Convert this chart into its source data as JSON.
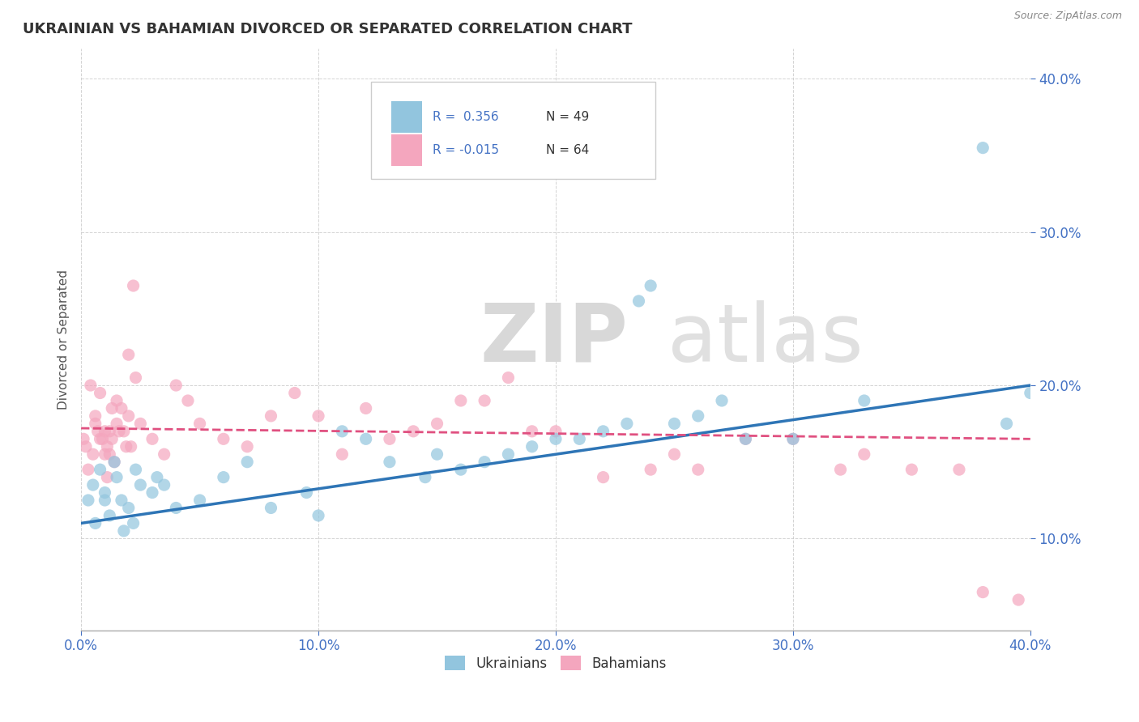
{
  "title": "UKRAINIAN VS BAHAMIAN DIVORCED OR SEPARATED CORRELATION CHART",
  "source": "Source: ZipAtlas.com",
  "ylabel": "Divorced or Separated",
  "legend_blue_r": "R =  0.356",
  "legend_blue_n": "N = 49",
  "legend_pink_r": "R = -0.015",
  "legend_pink_n": "N = 64",
  "legend_blue_label": "Ukrainians",
  "legend_pink_label": "Bahamians",
  "blue_color": "#92c5de",
  "pink_color": "#f4a6be",
  "blue_line_color": "#2e75b6",
  "pink_line_color": "#e05080",
  "watermark_zip": "ZIP",
  "watermark_atlas": "atlas",
  "blue_scatter_x": [
    0.3,
    0.5,
    0.6,
    0.8,
    1.0,
    1.0,
    1.2,
    1.4,
    1.5,
    1.7,
    1.8,
    2.0,
    2.2,
    2.3,
    2.5,
    3.0,
    3.2,
    3.5,
    4.0,
    5.0,
    6.0,
    7.0,
    8.0,
    9.5,
    10.0,
    11.0,
    12.0,
    13.0,
    14.5,
    15.0,
    16.0,
    17.0,
    18.0,
    19.0,
    20.0,
    21.0,
    22.0,
    23.0,
    23.5,
    24.0,
    25.0,
    26.0,
    27.0,
    28.0,
    30.0,
    33.0,
    38.0,
    39.0,
    40.0
  ],
  "blue_scatter_y": [
    12.5,
    13.5,
    11.0,
    14.5,
    12.5,
    13.0,
    11.5,
    15.0,
    14.0,
    12.5,
    10.5,
    12.0,
    11.0,
    14.5,
    13.5,
    13.0,
    14.0,
    13.5,
    12.0,
    12.5,
    14.0,
    15.0,
    12.0,
    13.0,
    11.5,
    17.0,
    16.5,
    15.0,
    14.0,
    15.5,
    14.5,
    15.0,
    15.5,
    16.0,
    16.5,
    16.5,
    17.0,
    17.5,
    25.5,
    26.5,
    17.5,
    18.0,
    19.0,
    16.5,
    16.5,
    19.0,
    35.5,
    17.5,
    19.5
  ],
  "pink_scatter_x": [
    0.1,
    0.2,
    0.3,
    0.4,
    0.5,
    0.6,
    0.6,
    0.7,
    0.8,
    0.8,
    0.9,
    1.0,
    1.0,
    1.1,
    1.1,
    1.2,
    1.2,
    1.3,
    1.3,
    1.4,
    1.5,
    1.5,
    1.6,
    1.7,
    1.8,
    1.9,
    2.0,
    2.0,
    2.1,
    2.2,
    2.3,
    2.5,
    3.0,
    3.5,
    4.0,
    4.5,
    5.0,
    6.0,
    7.0,
    8.0,
    9.0,
    10.0,
    11.0,
    12.0,
    13.0,
    14.0,
    15.0,
    16.0,
    17.0,
    18.0,
    19.0,
    20.0,
    22.0,
    24.0,
    25.0,
    26.0,
    28.0,
    30.0,
    32.0,
    33.0,
    35.0,
    37.0,
    38.0,
    39.5
  ],
  "pink_scatter_y": [
    16.5,
    16.0,
    14.5,
    20.0,
    15.5,
    17.5,
    18.0,
    17.0,
    16.5,
    19.5,
    16.5,
    15.5,
    17.0,
    14.0,
    16.0,
    15.5,
    17.0,
    16.5,
    18.5,
    15.0,
    19.0,
    17.5,
    17.0,
    18.5,
    17.0,
    16.0,
    18.0,
    22.0,
    16.0,
    26.5,
    20.5,
    17.5,
    16.5,
    15.5,
    20.0,
    19.0,
    17.5,
    16.5,
    16.0,
    18.0,
    19.5,
    18.0,
    15.5,
    18.5,
    16.5,
    17.0,
    17.5,
    19.0,
    19.0,
    20.5,
    17.0,
    17.0,
    14.0,
    14.5,
    15.5,
    14.5,
    16.5,
    16.5,
    14.5,
    15.5,
    14.5,
    14.5,
    6.5,
    6.0
  ],
  "xlim": [
    0.0,
    40.0
  ],
  "ylim": [
    4.0,
    42.0
  ],
  "yticks": [
    10.0,
    20.0,
    30.0,
    40.0
  ],
  "xticks": [
    0.0,
    10.0,
    20.0,
    30.0,
    40.0
  ],
  "blue_trend_x0": 0.0,
  "blue_trend_x1": 40.0,
  "blue_trend_y0": 11.0,
  "blue_trend_y1": 20.0,
  "pink_trend_x0": 0.0,
  "pink_trend_x1": 40.0,
  "pink_trend_y0": 17.2,
  "pink_trend_y1": 16.5
}
